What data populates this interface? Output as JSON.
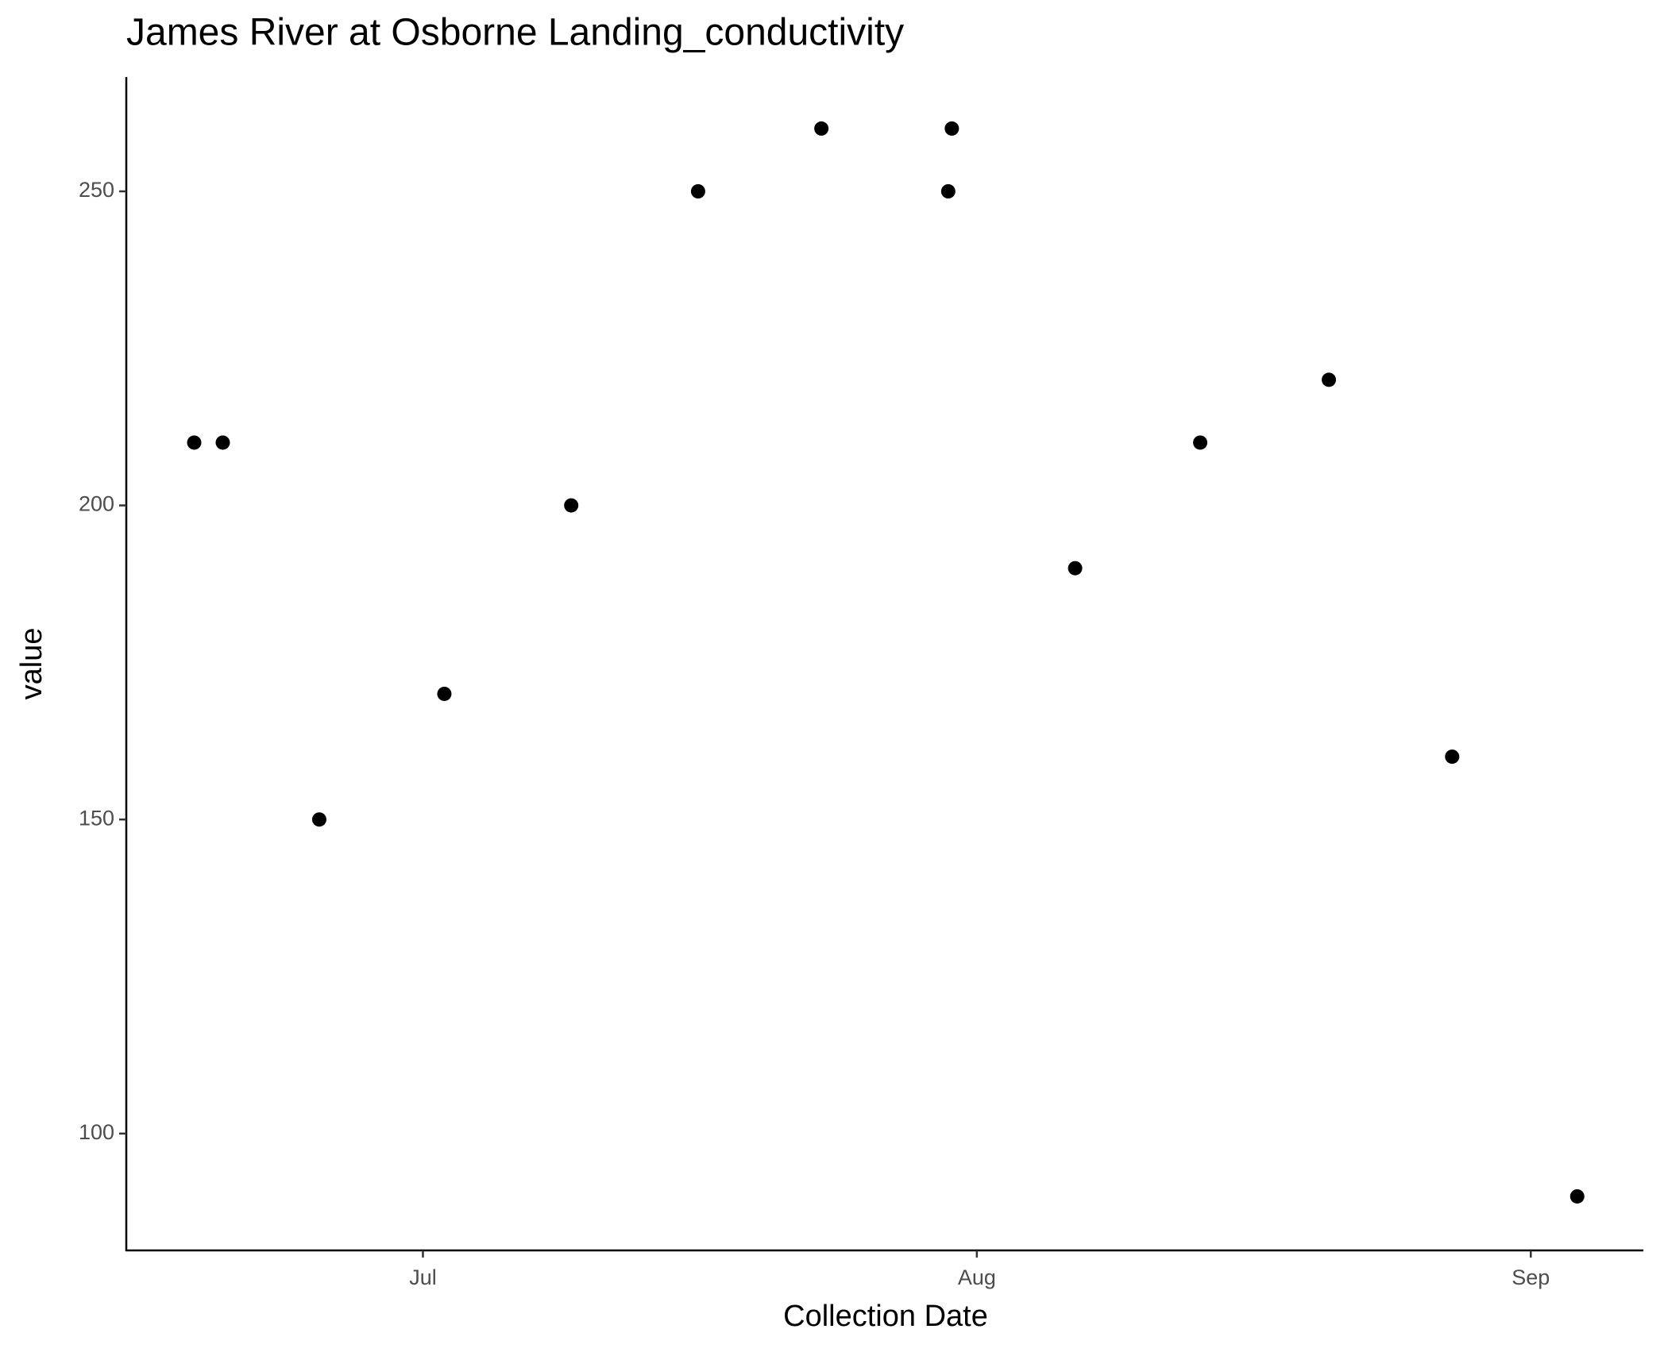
{
  "chart_data": {
    "type": "scatter",
    "title": "James River at Osborne Landing_conductivity",
    "x_label": "Collection Date",
    "y_label": "value",
    "x": [
      -12.8,
      -11.2,
      -5.8,
      1.2,
      8.3,
      15.4,
      22.3,
      29.4,
      29.6,
      36.5,
      43.5,
      50.7,
      57.6,
      64.6
    ],
    "values": [
      210,
      210,
      150,
      170,
      200,
      250,
      260,
      250,
      260,
      190,
      210,
      220,
      160,
      90
    ],
    "color": "#000000",
    "xlim": [
      -16.6,
      68.3
    ],
    "xticks": [
      {
        "value": 0,
        "label": "Jul"
      },
      {
        "value": 31,
        "label": "Aug"
      },
      {
        "value": 62,
        "label": "Sep"
      }
    ],
    "ylim": [
      81.4,
      268.2
    ],
    "yticks": [
      100,
      150,
      200,
      250
    ],
    "grid": false
  }
}
